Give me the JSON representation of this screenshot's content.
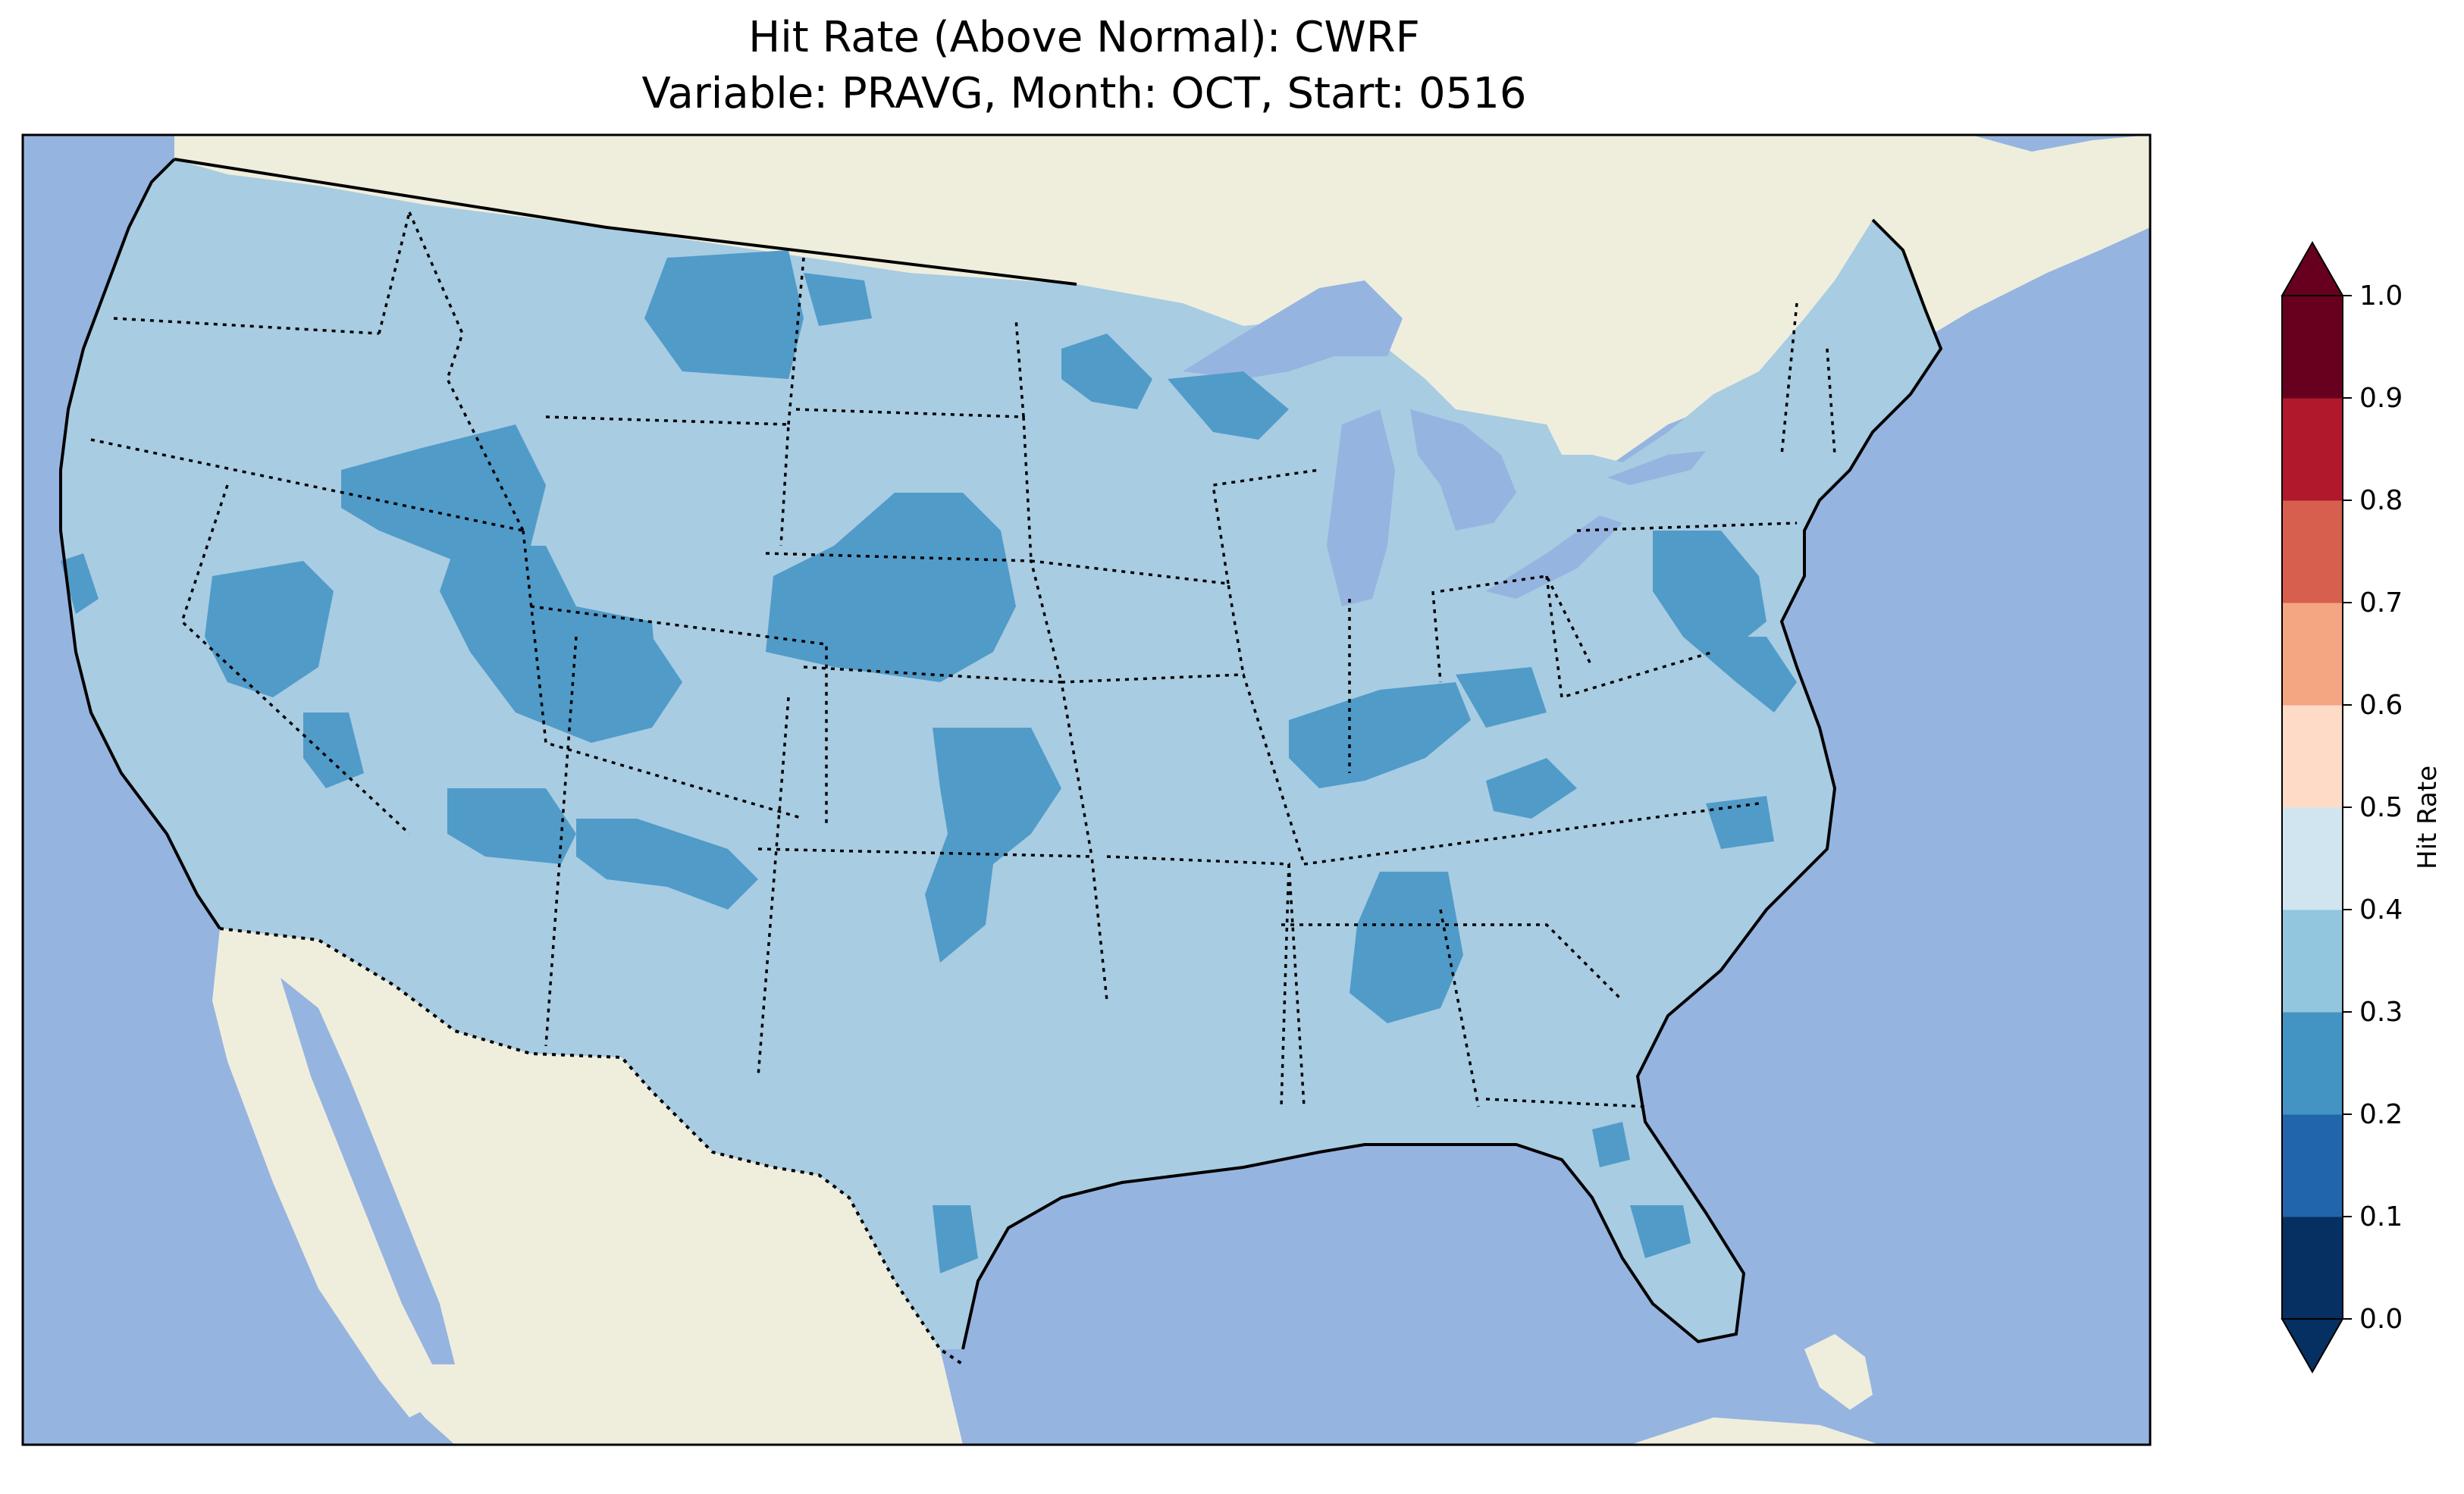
{
  "title_line1": "Hit Rate (Above Normal): CWRF",
  "title_line2": "Variable: PRAVG, Month: OCT, Start: 0516",
  "colorbar": {
    "label": "Hit Rate",
    "ticks": [
      "0.0",
      "0.1",
      "0.2",
      "0.3",
      "0.4",
      "0.5",
      "0.6",
      "0.7",
      "0.8",
      "0.9",
      "1.0"
    ],
    "bins": [
      {
        "range": [
          0.0,
          0.1
        ],
        "color": "#053061"
      },
      {
        "range": [
          0.1,
          0.2
        ],
        "color": "#2166ac"
      },
      {
        "range": [
          0.2,
          0.3
        ],
        "color": "#4393c3"
      },
      {
        "range": [
          0.3,
          0.4
        ],
        "color": "#92c5de"
      },
      {
        "range": [
          0.4,
          0.5
        ],
        "color": "#d1e5f0"
      },
      {
        "range": [
          0.5,
          0.6
        ],
        "color": "#fddbc7"
      },
      {
        "range": [
          0.6,
          0.7
        ],
        "color": "#f4a582"
      },
      {
        "range": [
          0.7,
          0.8
        ],
        "color": "#d6604d"
      },
      {
        "range": [
          0.8,
          0.9
        ],
        "color": "#b2182b"
      },
      {
        "range": [
          0.9,
          1.0
        ],
        "color": "#67001f"
      }
    ],
    "extend": "both"
  },
  "map_colors": {
    "ocean": "#96b4e0",
    "land": "#efeedd",
    "field_mid": "#a8cce2",
    "field_low": "#519bc9"
  }
}
